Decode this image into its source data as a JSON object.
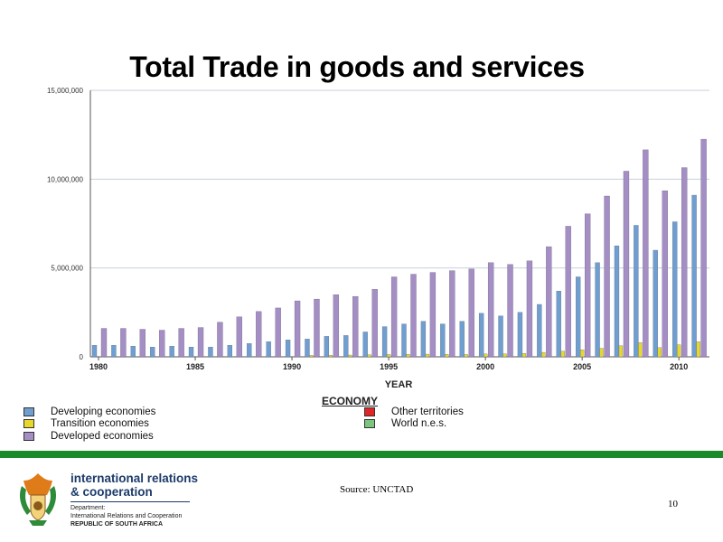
{
  "slide": {
    "title": "Total Trade in goods and services",
    "source": "Source: UNCTAD",
    "page_number": "10"
  },
  "footer": {
    "org_line1": "international relations",
    "org_line2": "& cooperation",
    "dept_label": "Department:",
    "dept_name": "International Relations and Cooperation",
    "country": "REPUBLIC OF SOUTH AFRICA",
    "accent_color": "#1a8a2a"
  },
  "chart_data": {
    "type": "bar",
    "xlabel": "YEAR",
    "ylabel": "",
    "ylim": [
      0,
      15000000
    ],
    "yticks": [
      0,
      5000000,
      10000000,
      15000000
    ],
    "ytick_labels": [
      "0",
      "5,000,000",
      "10,000,000",
      "15,000,000"
    ],
    "xtick_labels": [
      "1980",
      "1985",
      "1990",
      "1995",
      "2000",
      "2005",
      "2010"
    ],
    "legend_title": "ECONOMY",
    "grid": true,
    "categories": [
      "1980",
      "1981",
      "1982",
      "1983",
      "1984",
      "1985",
      "1986",
      "1987",
      "1988",
      "1989",
      "1990",
      "1991",
      "1992",
      "1993",
      "1994",
      "1995",
      "1996",
      "1997",
      "1998",
      "1999",
      "2000",
      "2001",
      "2002",
      "2003",
      "2004",
      "2005",
      "2006",
      "2007",
      "2008",
      "2009",
      "2010",
      "2011"
    ],
    "series": [
      {
        "name": "Developing economies",
        "color": "#6f9fd0",
        "values": [
          650000,
          650000,
          600000,
          550000,
          600000,
          550000,
          550000,
          650000,
          750000,
          850000,
          950000,
          1000000,
          1150000,
          1200000,
          1400000,
          1700000,
          1850000,
          2000000,
          1850000,
          2000000,
          2450000,
          2300000,
          2500000,
          2950000,
          3700000,
          4500000,
          5300000,
          6250000,
          7400000,
          6000000,
          7600000,
          9100000
        ]
      },
      {
        "name": "Transition economies",
        "color": "#e8d82a",
        "values": [
          0,
          0,
          0,
          0,
          0,
          0,
          0,
          0,
          0,
          0,
          0,
          80000,
          90000,
          100000,
          110000,
          130000,
          140000,
          150000,
          140000,
          130000,
          160000,
          170000,
          190000,
          250000,
          320000,
          400000,
          480000,
          620000,
          800000,
          520000,
          680000,
          850000
        ]
      },
      {
        "name": "Developed economies",
        "color": "#a58ec4",
        "values": [
          1600000,
          1600000,
          1550000,
          1500000,
          1600000,
          1650000,
          1950000,
          2250000,
          2550000,
          2750000,
          3150000,
          3250000,
          3500000,
          3400000,
          3800000,
          4500000,
          4650000,
          4750000,
          4850000,
          4950000,
          5300000,
          5200000,
          5400000,
          6200000,
          7350000,
          8050000,
          9050000,
          10450000,
          11650000,
          9350000,
          10650000,
          12250000
        ]
      },
      {
        "name": "Other territories",
        "color": "#e22626",
        "values": [
          0,
          0,
          0,
          0,
          0,
          0,
          0,
          0,
          0,
          0,
          0,
          0,
          0,
          0,
          0,
          0,
          0,
          0,
          0,
          0,
          0,
          0,
          0,
          0,
          0,
          0,
          0,
          0,
          0,
          0,
          0,
          0
        ]
      },
      {
        "name": "World n.e.s.",
        "color": "#7cc57c",
        "values": [
          0,
          0,
          0,
          0,
          0,
          0,
          0,
          0,
          0,
          0,
          0,
          0,
          0,
          0,
          0,
          0,
          0,
          0,
          0,
          0,
          0,
          0,
          0,
          0,
          0,
          0,
          0,
          0,
          0,
          0,
          0,
          0
        ]
      }
    ]
  }
}
